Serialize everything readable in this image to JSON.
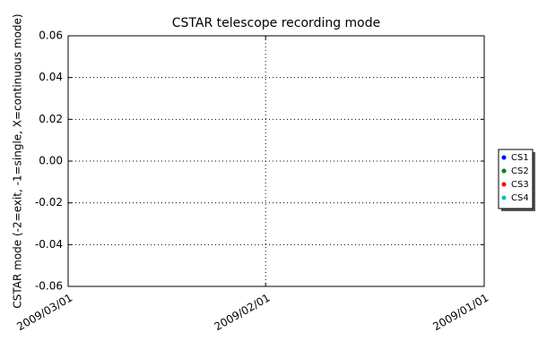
{
  "chart_data": {
    "type": "line",
    "title": "CSTAR telescope recording mode",
    "ylabel": "CSTAR mode (-2=exit, -1=single, X=continuous mode)",
    "xlim": [
      "2009/03/01",
      "2009/01/01"
    ],
    "xticks": [
      "2009/03/01",
      "2009/02/01",
      "2009/01/01"
    ],
    "ylim": [
      -0.06,
      0.06
    ],
    "yticks": [
      -0.06,
      -0.04,
      -0.02,
      {
        "value": 0,
        "label": "0.00"
      },
      0.02,
      0.04,
      0.06
    ],
    "grid": true,
    "legend": "right",
    "series": [
      {
        "name": "CS1",
        "color": "#0000ff",
        "values": []
      },
      {
        "name": "CS2",
        "color": "#008000",
        "values": []
      },
      {
        "name": "CS3",
        "color": "#ff0000",
        "values": []
      },
      {
        "name": "CS4",
        "color": "#00bfbf",
        "values": []
      }
    ]
  }
}
